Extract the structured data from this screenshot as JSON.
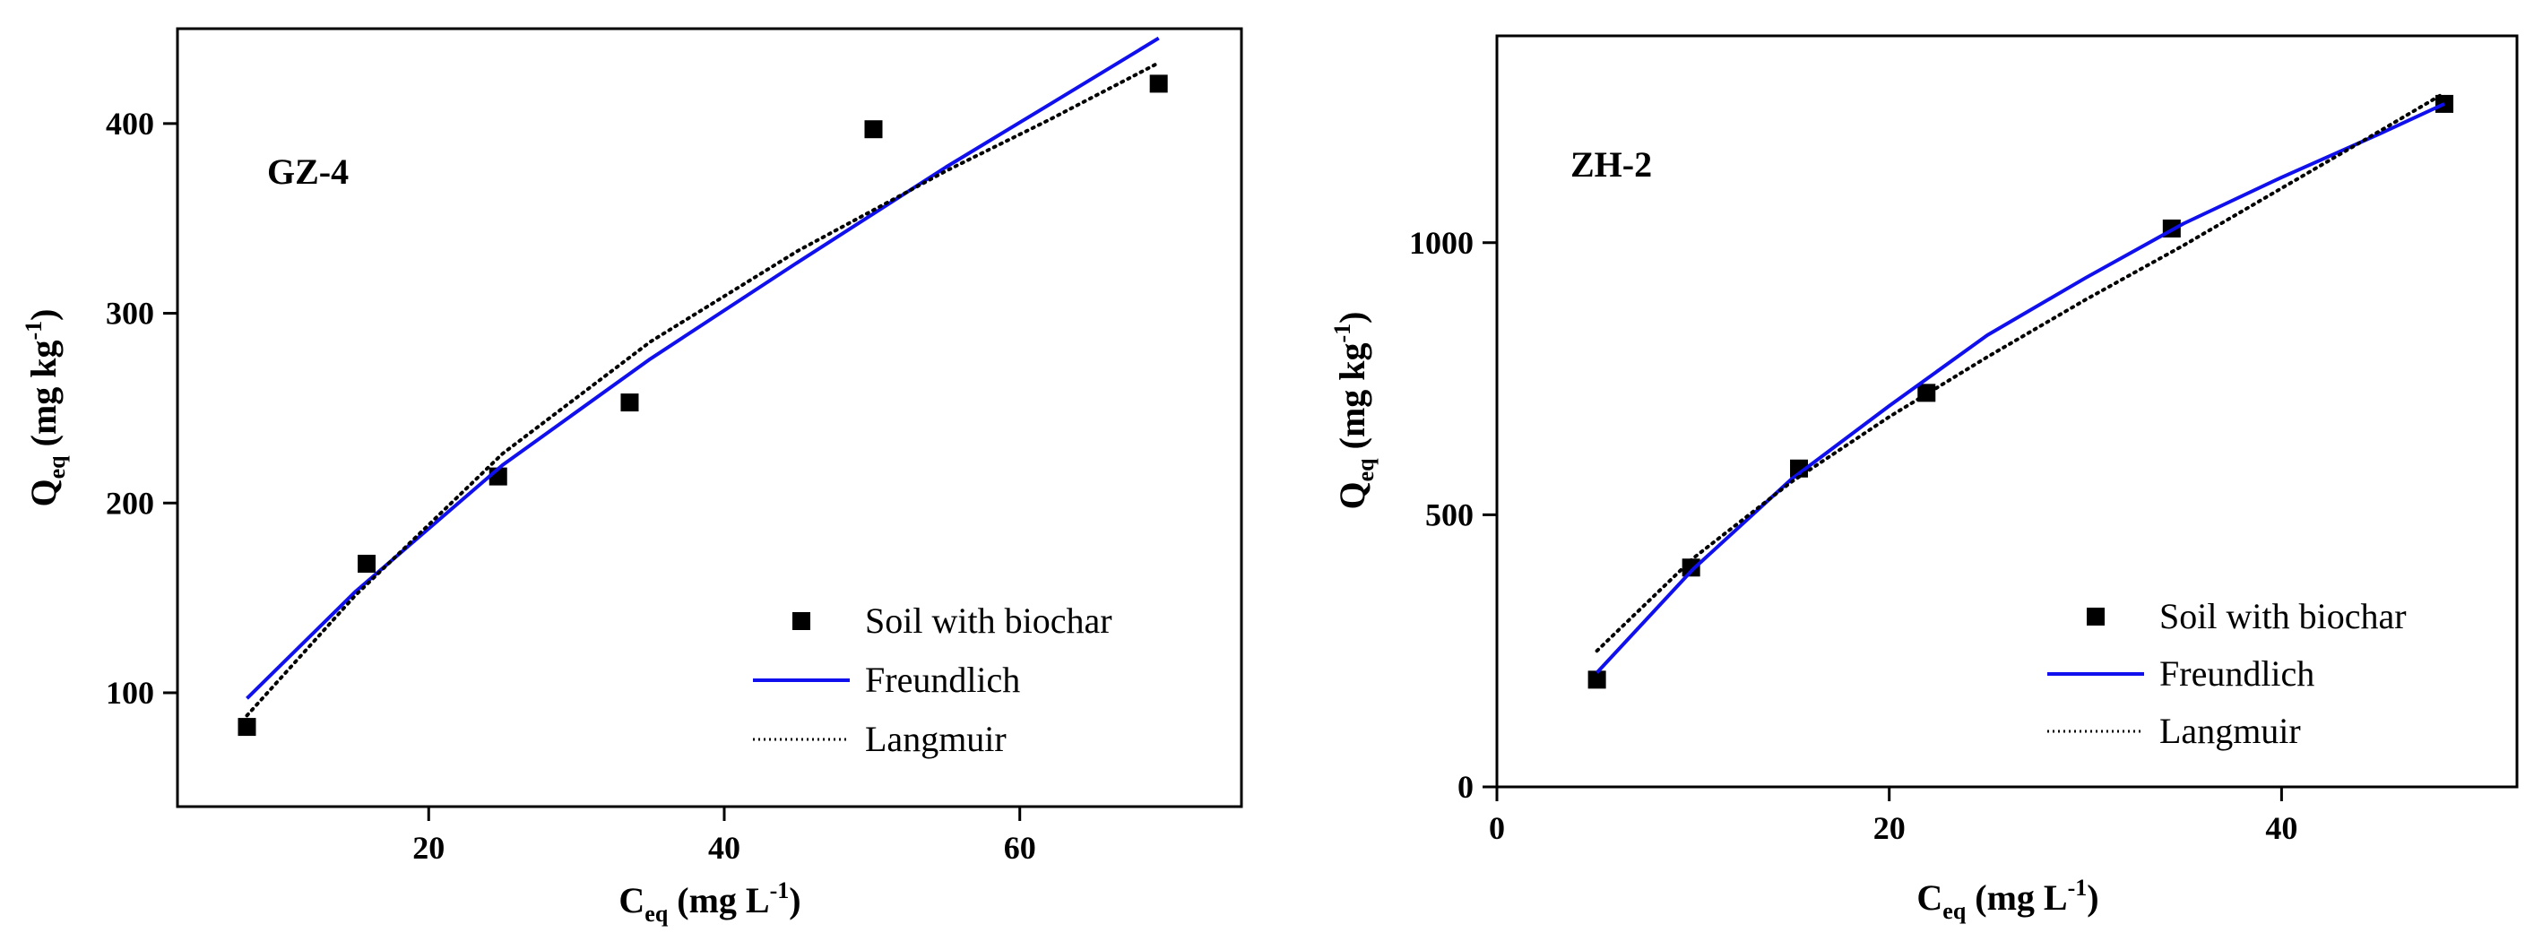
{
  "chart_data": [
    {
      "type": "scatter",
      "title": "GZ-4",
      "xlabel": {
        "main": "C",
        "sub": "eq",
        "unit_pre": " (mg L",
        "unit_sup": "-1",
        "unit_post": ")"
      },
      "ylabel": {
        "main": "Q",
        "sub": "eq",
        "unit_pre": " (mg kg",
        "unit_sup": "-1",
        "unit_post": ")"
      },
      "xlim": [
        3,
        75
      ],
      "ylim": [
        40,
        450
      ],
      "xticks": [
        20,
        40,
        60
      ],
      "yticks": [
        100,
        200,
        300,
        400
      ],
      "series": [
        {
          "name": "Soil with biochar",
          "kind": "points",
          "x": [
            7.7,
            15.8,
            24.7,
            33.6,
            50.1,
            69.4
          ],
          "y": [
            82,
            168,
            214,
            253,
            397,
            421
          ]
        },
        {
          "name": "Freundlich",
          "kind": "line",
          "color": "#1010ee",
          "x": [
            7.7,
            15.0,
            25.0,
            35.0,
            45.0,
            55.0,
            62.0,
            69.4
          ],
          "y": [
            97,
            153,
            220,
            276,
            327,
            377,
            410,
            445
          ]
        },
        {
          "name": "Langmuir",
          "kind": "dotted",
          "x": [
            7.7,
            15.0,
            25.0,
            35.0,
            45.0,
            55.0,
            62.0,
            69.4
          ],
          "y": [
            88,
            151,
            226,
            285,
            333,
            375,
            402,
            432
          ]
        }
      ],
      "legend": "bottom-right"
    },
    {
      "type": "scatter",
      "title": "ZH-2",
      "xlabel": {
        "main": "C",
        "sub": "eq",
        "unit_pre": " (mg L",
        "unit_sup": "-1",
        "unit_post": ")"
      },
      "ylabel": {
        "main": "Q",
        "sub": "eq",
        "unit_pre": " (mg kg",
        "unit_sup": "-1",
        "unit_post": ")"
      },
      "xlim": [
        0,
        52
      ],
      "ylim": [
        0,
        1380
      ],
      "xticks": [
        0,
        20,
        40
      ],
      "yticks": [
        0,
        500,
        1000
      ],
      "series": [
        {
          "name": "Soil with biochar",
          "kind": "points",
          "x": [
            5.1,
            9.9,
            15.4,
            21.9,
            34.4,
            48.3
          ],
          "y": [
            197,
            403,
            585,
            724,
            1026,
            1255
          ]
        },
        {
          "name": "Freundlich",
          "kind": "line",
          "color": "#1010ee",
          "x": [
            5.1,
            10.0,
            15.0,
            20.0,
            25.0,
            30.0,
            35.0,
            40.0,
            45.0,
            48.3
          ],
          "y": [
            210,
            400,
            565,
            700,
            830,
            935,
            1035,
            1120,
            1200,
            1255
          ]
        },
        {
          "name": "Langmuir",
          "kind": "dotted",
          "x": [
            5.1,
            10.0,
            15.0,
            20.0,
            25.0,
            30.0,
            35.0,
            40.0,
            45.0,
            48.3
          ],
          "y": [
            250,
            420,
            560,
            680,
            790,
            895,
            995,
            1100,
            1205,
            1275
          ]
        }
      ],
      "legend": "bottom-right"
    }
  ]
}
